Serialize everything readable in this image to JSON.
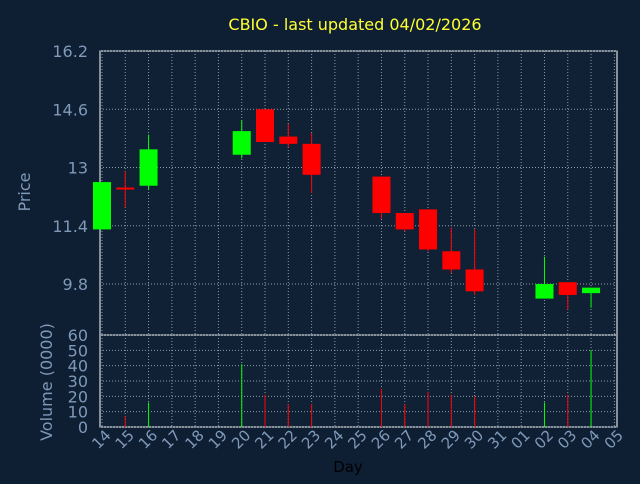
{
  "title": "CBIO - last updated 04/02/2026",
  "colors": {
    "background": "#0f1f33",
    "plot_background": "#102136",
    "grid": "#8a9aaa",
    "axis_text": "#7f99b8",
    "title": "#ffff33",
    "up": "#00ff00",
    "down": "#ff0000"
  },
  "chart_data": [
    {
      "type": "candlestick",
      "title": "CBIO - last updated 04/02/2026",
      "ylabel": "Price",
      "ylim": [
        8.4,
        16.2
      ],
      "yticks": [
        "16.2",
        "14.6",
        "13",
        "11.4",
        "9.8"
      ],
      "grid": true,
      "days": [
        "14",
        "15",
        "16",
        "17",
        "18",
        "19",
        "20",
        "21",
        "22",
        "23",
        "24",
        "25",
        "26",
        "27",
        "28",
        "29",
        "30",
        "31",
        "01",
        "02",
        "03",
        "04",
        "05"
      ],
      "candles": [
        {
          "day": "14",
          "open": 11.3,
          "high": 12.6,
          "low": 11.3,
          "close": 12.6
        },
        {
          "day": "15",
          "open": 12.45,
          "high": 12.9,
          "low": 11.9,
          "close": 12.4
        },
        {
          "day": "16",
          "open": 12.5,
          "high": 13.9,
          "low": 12.4,
          "close": 13.5
        },
        {
          "day": "20",
          "open": 13.35,
          "high": 14.3,
          "low": 13.25,
          "close": 14.0
        },
        {
          "day": "21",
          "open": 14.6,
          "high": 14.6,
          "low": 13.7,
          "close": 13.7
        },
        {
          "day": "22",
          "open": 13.85,
          "high": 14.2,
          "low": 13.55,
          "close": 13.65
        },
        {
          "day": "23",
          "open": 13.65,
          "high": 13.95,
          "low": 12.3,
          "close": 12.8
        },
        {
          "day": "26",
          "open": 12.75,
          "high": 12.75,
          "low": 11.6,
          "close": 11.75
        },
        {
          "day": "27",
          "open": 11.75,
          "high": 11.75,
          "low": 11.25,
          "close": 11.3
        },
        {
          "day": "28",
          "open": 11.85,
          "high": 11.85,
          "low": 10.7,
          "close": 10.75
        },
        {
          "day": "29",
          "open": 10.7,
          "high": 11.35,
          "low": 10.1,
          "close": 10.2
        },
        {
          "day": "30",
          "open": 10.2,
          "high": 11.3,
          "low": 9.5,
          "close": 9.6
        },
        {
          "day": "02",
          "open": 9.4,
          "high": 10.55,
          "low": 9.4,
          "close": 9.8
        },
        {
          "day": "03",
          "open": 9.85,
          "high": 9.85,
          "low": 9.1,
          "close": 9.5
        },
        {
          "day": "04",
          "open": 9.55,
          "high": 9.7,
          "low": 9.15,
          "close": 9.7
        }
      ]
    },
    {
      "type": "bar",
      "ylabel": "Volume (0000)",
      "xlabel": "Day",
      "ylim": [
        0,
        60
      ],
      "yticks": [
        "60",
        "50",
        "40",
        "30",
        "20",
        "10",
        "0"
      ],
      "grid": true,
      "series": [
        {
          "values": [
            {
              "day": "14",
              "volume": 0,
              "up": true
            },
            {
              "day": "15",
              "volume": 7,
              "up": false
            },
            {
              "day": "16",
              "volume": 16,
              "up": true
            },
            {
              "day": "20",
              "volume": 41,
              "up": true
            },
            {
              "day": "21",
              "volume": 21,
              "up": false
            },
            {
              "day": "22",
              "volume": 15,
              "up": false
            },
            {
              "day": "23",
              "volume": 15,
              "up": false
            },
            {
              "day": "26",
              "volume": 25,
              "up": false
            },
            {
              "day": "27",
              "volume": 15,
              "up": false
            },
            {
              "day": "28",
              "volume": 23,
              "up": false
            },
            {
              "day": "29",
              "volume": 21,
              "up": false
            },
            {
              "day": "30",
              "volume": 20,
              "up": false
            },
            {
              "day": "02",
              "volume": 16,
              "up": true
            },
            {
              "day": "03",
              "volume": 21,
              "up": false
            },
            {
              "day": "04",
              "volume": 50,
              "up": true
            }
          ]
        }
      ]
    }
  ]
}
